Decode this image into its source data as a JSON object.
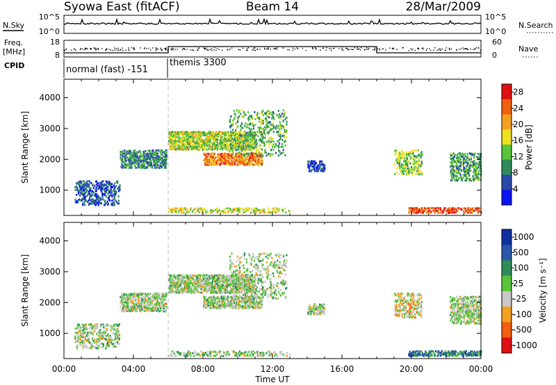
{
  "header": {
    "station": "Syowa East (fitACF)",
    "beam": "Beam 14",
    "date": "28/Mar/2009"
  },
  "top_panels": {
    "nsky_label": "N.Sky",
    "nsky_ticks": [
      "10^5",
      "10^0"
    ],
    "nsearch_label": "N.Search",
    "freq_label_1": "Freq.",
    "freq_label_2": "[MHz]",
    "freq_ticks": [
      "18",
      "8"
    ],
    "nave_ticks": [
      "60",
      "0"
    ],
    "nave_label": "Nave",
    "cpid_label": "CPID",
    "cpid_entries": [
      {
        "name": "normal (fast) -151",
        "start_hour": 0,
        "end_hour": 6
      },
      {
        "name": "themis 3300",
        "start_hour": 6,
        "end_hour": 24
      }
    ]
  },
  "chart_data": [
    {
      "type": "heatmap",
      "title": "",
      "quantity": "Power",
      "xlabel": "Time UT",
      "ylabel": "Slant Range [km]",
      "xlim_hours": [
        0,
        24
      ],
      "ylim_km": [
        180,
        4600
      ],
      "x_ticks": [
        "00:00",
        "04:00",
        "08:00",
        "12:00",
        "16:00",
        "20:00",
        "00:00"
      ],
      "x_tick_hours": [
        0,
        4,
        8,
        12,
        16,
        20,
        24
      ],
      "y_ticks": [
        1000,
        2000,
        3000,
        4000
      ],
      "colorbar": {
        "label": "Power [dB]",
        "tick_labels": [
          "4",
          "8",
          "12",
          "16",
          "20",
          "24",
          "28"
        ],
        "tick_values": [
          4,
          8,
          12,
          16,
          20,
          24,
          28
        ],
        "range": [
          0,
          30
        ],
        "colors": [
          "#0a14f0",
          "#2a4aa8",
          "#2e8c5a",
          "#58c43a",
          "#f0e020",
          "#f4a020",
          "#f06010",
          "#e01010"
        ]
      },
      "regions": [
        {
          "t0": 0.6,
          "t1": 3.2,
          "r0": 500,
          "r1": 1300,
          "level": 0.2,
          "density": 0.35,
          "desc": "early ionospheric echo"
        },
        {
          "t0": 3.2,
          "t1": 5.9,
          "r0": 1700,
          "r1": 2300,
          "level": 0.3,
          "density": 0.55
        },
        {
          "t0": 6.0,
          "t1": 11.0,
          "r0": 2300,
          "r1": 2900,
          "level": 0.5,
          "density": 0.65
        },
        {
          "t0": 8.0,
          "t1": 11.4,
          "r0": 1800,
          "r1": 2200,
          "level": 0.75,
          "density": 0.6
        },
        {
          "t0": 9.5,
          "t1": 12.8,
          "r0": 2100,
          "r1": 3600,
          "level": 0.4,
          "density": 0.2
        },
        {
          "t0": 14.0,
          "t1": 15.0,
          "r0": 1600,
          "r1": 1950,
          "level": 0.15,
          "density": 0.5
        },
        {
          "t0": 19.0,
          "t1": 20.6,
          "r0": 1500,
          "r1": 2300,
          "level": 0.45,
          "density": 0.35
        },
        {
          "t0": 22.2,
          "t1": 24.0,
          "r0": 1300,
          "r1": 2200,
          "level": 0.35,
          "density": 0.45
        },
        {
          "t0": 19.8,
          "t1": 24.0,
          "r0": 250,
          "r1": 430,
          "level": 0.85,
          "density": 0.55,
          "desc": "near-range ground scatter"
        },
        {
          "t0": 6.0,
          "t1": 13.0,
          "r0": 250,
          "r1": 420,
          "level": 0.55,
          "density": 0.3
        }
      ]
    },
    {
      "type": "heatmap",
      "title": "",
      "quantity": "Velocity",
      "xlabel": "Time UT",
      "ylabel": "Slant Range [km]",
      "xlim_hours": [
        0,
        24
      ],
      "ylim_km": [
        180,
        4600
      ],
      "x_ticks": [
        "00:00",
        "04:00",
        "08:00",
        "12:00",
        "16:00",
        "20:00",
        "00:00"
      ],
      "x_tick_hours": [
        0,
        4,
        8,
        12,
        16,
        20,
        24
      ],
      "y_ticks": [
        1000,
        2000,
        3000,
        4000
      ],
      "colorbar": {
        "label": "Velocity [m s⁻¹]",
        "tick_labels": [
          "1000",
          "500",
          "100",
          "25",
          "-25",
          "-100",
          "-500",
          "-1000"
        ],
        "tick_values": [
          1000,
          500,
          100,
          25,
          -25,
          -100,
          -500,
          -1000
        ],
        "colors": [
          "#1030a0",
          "#2a58a8",
          "#2e8c5a",
          "#58c43a",
          "#c8c8c8",
          "#f4a020",
          "#f06010",
          "#e01010"
        ]
      },
      "regions": [
        {
          "t0": 0.6,
          "t1": 3.2,
          "r0": 500,
          "r1": 1300,
          "level": 0.5,
          "density": 0.35
        },
        {
          "t0": 3.2,
          "t1": 5.9,
          "r0": 1700,
          "r1": 2300,
          "level": 0.5,
          "density": 0.55
        },
        {
          "t0": 6.0,
          "t1": 11.0,
          "r0": 2300,
          "r1": 2900,
          "level": 0.5,
          "density": 0.65
        },
        {
          "t0": 8.0,
          "t1": 11.4,
          "r0": 1800,
          "r1": 2200,
          "level": 0.5,
          "density": 0.6
        },
        {
          "t0": 9.5,
          "t1": 12.8,
          "r0": 2100,
          "r1": 3600,
          "level": 0.5,
          "density": 0.2
        },
        {
          "t0": 14.0,
          "t1": 15.0,
          "r0": 1600,
          "r1": 1950,
          "level": 0.5,
          "density": 0.5
        },
        {
          "t0": 19.0,
          "t1": 20.6,
          "r0": 1500,
          "r1": 2300,
          "level": 0.6,
          "density": 0.35
        },
        {
          "t0": 22.2,
          "t1": 24.0,
          "r0": 1300,
          "r1": 2200,
          "level": 0.5,
          "density": 0.45
        },
        {
          "t0": 19.8,
          "t1": 24.0,
          "r0": 250,
          "r1": 430,
          "level": 0.25,
          "density": 0.55
        },
        {
          "t0": 6.0,
          "t1": 13.0,
          "r0": 250,
          "r1": 420,
          "level": 0.5,
          "density": 0.3
        }
      ]
    }
  ]
}
